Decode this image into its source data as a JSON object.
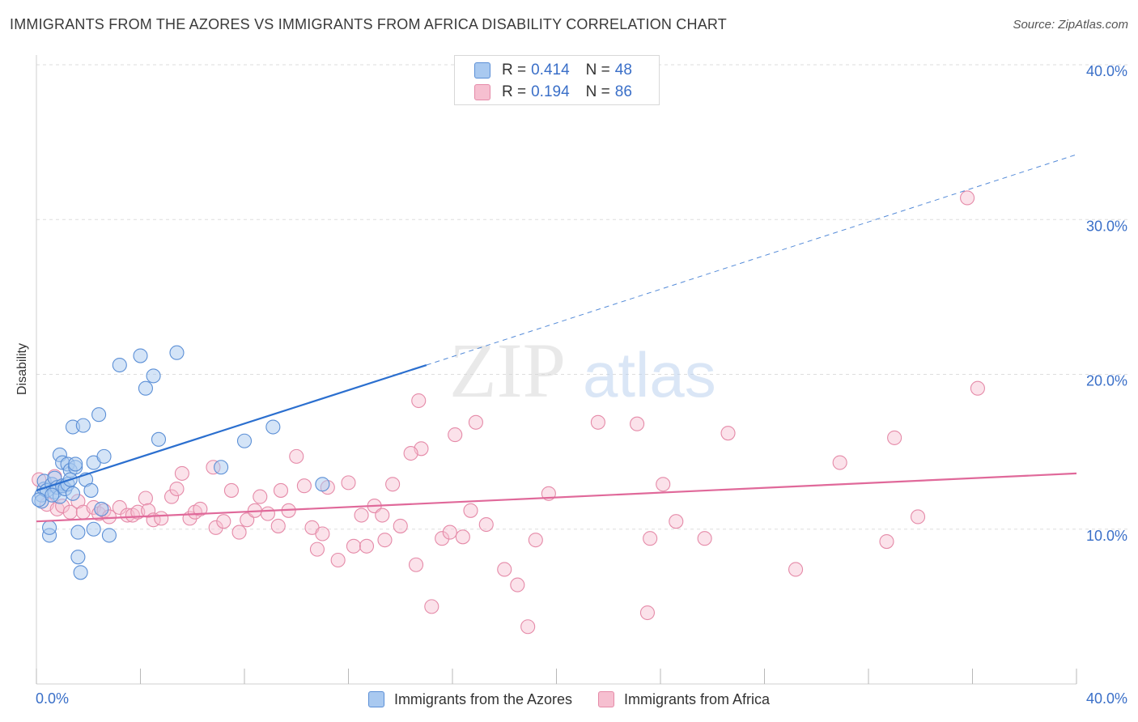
{
  "header": {
    "title": "IMMIGRANTS FROM THE AZORES VS IMMIGRANTS FROM AFRICA DISABILITY CORRELATION CHART",
    "source": "Source: ZipAtlas.com"
  },
  "watermark": {
    "zip": "ZIP",
    "atlas": "atlas"
  },
  "legend_top": [
    {
      "r_label": "R =",
      "r_value": "0.414",
      "n_label": "N =",
      "n_value": "48"
    },
    {
      "r_label": "R =",
      "r_value": "0.194",
      "n_label": "N =",
      "n_value": "86"
    }
  ],
  "colors": {
    "blue_fill": "#a9c9f0",
    "blue_stroke": "#5b8fd6",
    "blue_line": "#2b6fcf",
    "pink_fill": "#f6bfd0",
    "pink_stroke": "#e58aa8",
    "pink_line": "#e0699a",
    "tick_label": "#3a6fc8",
    "grid": "#dddddd"
  },
  "chart_data": {
    "type": "scatter",
    "title": "IMMIGRANTS FROM THE AZORES VS IMMIGRANTS FROM AFRICA DISABILITY CORRELATION CHART",
    "xlabel": "",
    "ylabel": "Disability",
    "xlim": [
      0,
      40
    ],
    "ylim": [
      0,
      40
    ],
    "x_tick_labels": [
      "0.0%",
      "40.0%"
    ],
    "y_ticks": [
      10,
      20,
      30,
      40
    ],
    "y_tick_labels": [
      "10.0%",
      "20.0%",
      "30.0%",
      "40.0%"
    ],
    "grid": true,
    "legend_position": "top-center",
    "series": [
      {
        "name": "Immigrants from the Azores",
        "color": "#a9c9f0",
        "r": 0.414,
        "n": 48,
        "trend": {
          "x0": 0,
          "y0": 12.5,
          "x1": 15,
          "y1": 20.6,
          "dashed_to_x": 40,
          "dashed_to_y": 34.2
        },
        "points": [
          [
            0.2,
            12.2
          ],
          [
            0.2,
            11.8
          ],
          [
            0.3,
            12.6
          ],
          [
            0.3,
            13.1
          ],
          [
            0.4,
            12.5
          ],
          [
            0.5,
            9.6
          ],
          [
            0.5,
            10.1
          ],
          [
            0.6,
            12.9
          ],
          [
            0.7,
            12.4
          ],
          [
            0.7,
            13.3
          ],
          [
            0.8,
            12.7
          ],
          [
            0.9,
            12.1
          ],
          [
            0.9,
            14.8
          ],
          [
            1.0,
            12.8
          ],
          [
            1.0,
            14.3
          ],
          [
            1.1,
            12.6
          ],
          [
            1.2,
            12.9
          ],
          [
            1.2,
            14.2
          ],
          [
            1.3,
            13.8
          ],
          [
            1.3,
            13.2
          ],
          [
            1.4,
            16.6
          ],
          [
            1.4,
            12.3
          ],
          [
            1.5,
            14.0
          ],
          [
            1.5,
            14.2
          ],
          [
            1.6,
            9.8
          ],
          [
            1.6,
            8.2
          ],
          [
            1.7,
            7.2
          ],
          [
            1.8,
            16.7
          ],
          [
            1.9,
            13.2
          ],
          [
            2.1,
            12.5
          ],
          [
            2.2,
            10.0
          ],
          [
            2.2,
            14.3
          ],
          [
            2.4,
            17.4
          ],
          [
            2.5,
            11.3
          ],
          [
            2.6,
            14.7
          ],
          [
            2.8,
            9.6
          ],
          [
            3.2,
            20.6
          ],
          [
            4.0,
            21.2
          ],
          [
            4.2,
            19.1
          ],
          [
            4.5,
            19.9
          ],
          [
            4.7,
            15.8
          ],
          [
            5.4,
            21.4
          ],
          [
            7.1,
            14.0
          ],
          [
            8.0,
            15.7
          ],
          [
            9.1,
            16.6
          ],
          [
            11.0,
            12.9
          ],
          [
            0.1,
            11.9
          ],
          [
            0.6,
            12.2
          ]
        ]
      },
      {
        "name": "Immigrants from Africa",
        "color": "#f6bfd0",
        "r": 0.194,
        "n": 86,
        "trend": {
          "x0": 0,
          "y0": 10.5,
          "x1": 40,
          "y1": 13.6
        },
        "points": [
          [
            0.1,
            13.2
          ],
          [
            0.4,
            11.6
          ],
          [
            0.7,
            13.4
          ],
          [
            0.8,
            11.3
          ],
          [
            1.0,
            11.5
          ],
          [
            1.3,
            11.1
          ],
          [
            1.6,
            11.8
          ],
          [
            1.8,
            11.1
          ],
          [
            2.2,
            11.4
          ],
          [
            2.4,
            11.0
          ],
          [
            2.6,
            11.2
          ],
          [
            2.8,
            10.8
          ],
          [
            3.2,
            11.4
          ],
          [
            3.5,
            10.9
          ],
          [
            3.7,
            10.9
          ],
          [
            3.9,
            11.1
          ],
          [
            4.2,
            12.0
          ],
          [
            4.3,
            11.2
          ],
          [
            4.5,
            10.6
          ],
          [
            4.8,
            10.7
          ],
          [
            5.2,
            12.1
          ],
          [
            5.4,
            12.6
          ],
          [
            5.6,
            13.6
          ],
          [
            5.9,
            10.7
          ],
          [
            6.1,
            11.1
          ],
          [
            6.3,
            11.3
          ],
          [
            6.8,
            14.0
          ],
          [
            6.9,
            10.1
          ],
          [
            7.2,
            10.5
          ],
          [
            7.5,
            12.5
          ],
          [
            7.8,
            9.8
          ],
          [
            8.1,
            10.6
          ],
          [
            8.4,
            11.2
          ],
          [
            8.6,
            12.1
          ],
          [
            8.9,
            11.0
          ],
          [
            9.3,
            10.2
          ],
          [
            9.4,
            12.5
          ],
          [
            9.7,
            11.2
          ],
          [
            10.0,
            14.7
          ],
          [
            10.3,
            12.8
          ],
          [
            10.6,
            10.1
          ],
          [
            10.8,
            8.7
          ],
          [
            11.0,
            9.7
          ],
          [
            11.2,
            12.7
          ],
          [
            11.6,
            8.0
          ],
          [
            12.0,
            13.0
          ],
          [
            12.2,
            8.9
          ],
          [
            12.5,
            10.9
          ],
          [
            12.7,
            8.9
          ],
          [
            13.0,
            11.5
          ],
          [
            13.3,
            10.9
          ],
          [
            13.4,
            9.3
          ],
          [
            13.7,
            12.9
          ],
          [
            14.0,
            10.2
          ],
          [
            14.6,
            7.7
          ],
          [
            14.7,
            18.3
          ],
          [
            15.2,
            5.0
          ],
          [
            15.6,
            9.4
          ],
          [
            15.9,
            9.8
          ],
          [
            16.1,
            16.1
          ],
          [
            16.4,
            9.5
          ],
          [
            16.7,
            11.2
          ],
          [
            17.3,
            10.3
          ],
          [
            18.0,
            7.4
          ],
          [
            18.5,
            6.4
          ],
          [
            18.9,
            3.7
          ],
          [
            19.2,
            9.3
          ],
          [
            19.7,
            12.3
          ],
          [
            21.6,
            16.9
          ],
          [
            23.1,
            16.8
          ],
          [
            23.5,
            4.6
          ],
          [
            23.6,
            9.4
          ],
          [
            24.1,
            12.9
          ],
          [
            24.6,
            10.5
          ],
          [
            25.7,
            9.4
          ],
          [
            26.6,
            16.2
          ],
          [
            29.2,
            7.4
          ],
          [
            30.9,
            14.3
          ],
          [
            32.7,
            9.2
          ],
          [
            33.0,
            15.9
          ],
          [
            33.9,
            10.8
          ],
          [
            35.8,
            31.4
          ],
          [
            36.2,
            19.1
          ],
          [
            16.9,
            16.9
          ],
          [
            14.8,
            15.2
          ],
          [
            14.4,
            14.9
          ]
        ]
      }
    ]
  },
  "legend_bottom": [
    {
      "label": "Immigrants from the Azores"
    },
    {
      "label": "Immigrants from Africa"
    }
  ]
}
